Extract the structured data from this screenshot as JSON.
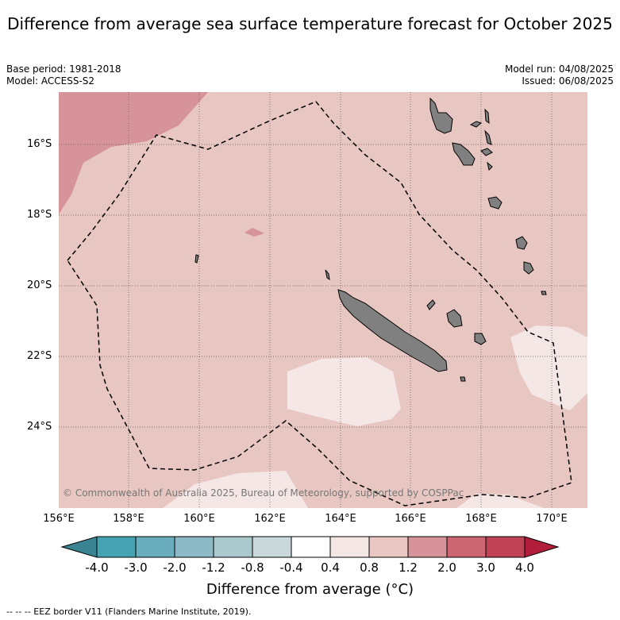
{
  "title": "Difference from average sea surface temperature forecast for October 2025",
  "meta": {
    "base_period": "Base period: 1981-2018",
    "model": "Model: ACCESS-S2",
    "model_run": "Model run: 04/08/2025",
    "issued": "Issued: 06/08/2025"
  },
  "map": {
    "lat_labels": [
      "16°S",
      "18°S",
      "20°S",
      "22°S",
      "24°S"
    ],
    "lon_labels": [
      "156°E",
      "158°E",
      "160°E",
      "162°E",
      "164°E",
      "166°E",
      "168°E",
      "170°E"
    ],
    "copyright": "© Commonwealth of Australia 2025, Bureau of Meteorology, supported by COSPPac",
    "land_color": "#808080",
    "base_color": "#e8c6c1",
    "warm_color": "#d69399",
    "cool_color": "#f4e7e5"
  },
  "colorbar": {
    "title": "Difference from average (°C)",
    "labels": [
      "-4.0",
      "-3.0",
      "-2.0",
      "-1.2",
      "-0.8",
      "-0.4",
      "0.4",
      "0.8",
      "1.2",
      "2.0",
      "3.0",
      "4.0"
    ],
    "colors": [
      "#3a8393",
      "#45a3b3",
      "#6aaebe",
      "#8cb9c5",
      "#a9c9cd",
      "#c9d8da",
      "#ffffff",
      "#f4e7e5",
      "#e8c6c1",
      "#d69399",
      "#cb6672",
      "#c04255",
      "#b21e3a"
    ]
  },
  "footer": "--  --  -- EEZ border V11 (Flanders Marine Institute, 2019)."
}
